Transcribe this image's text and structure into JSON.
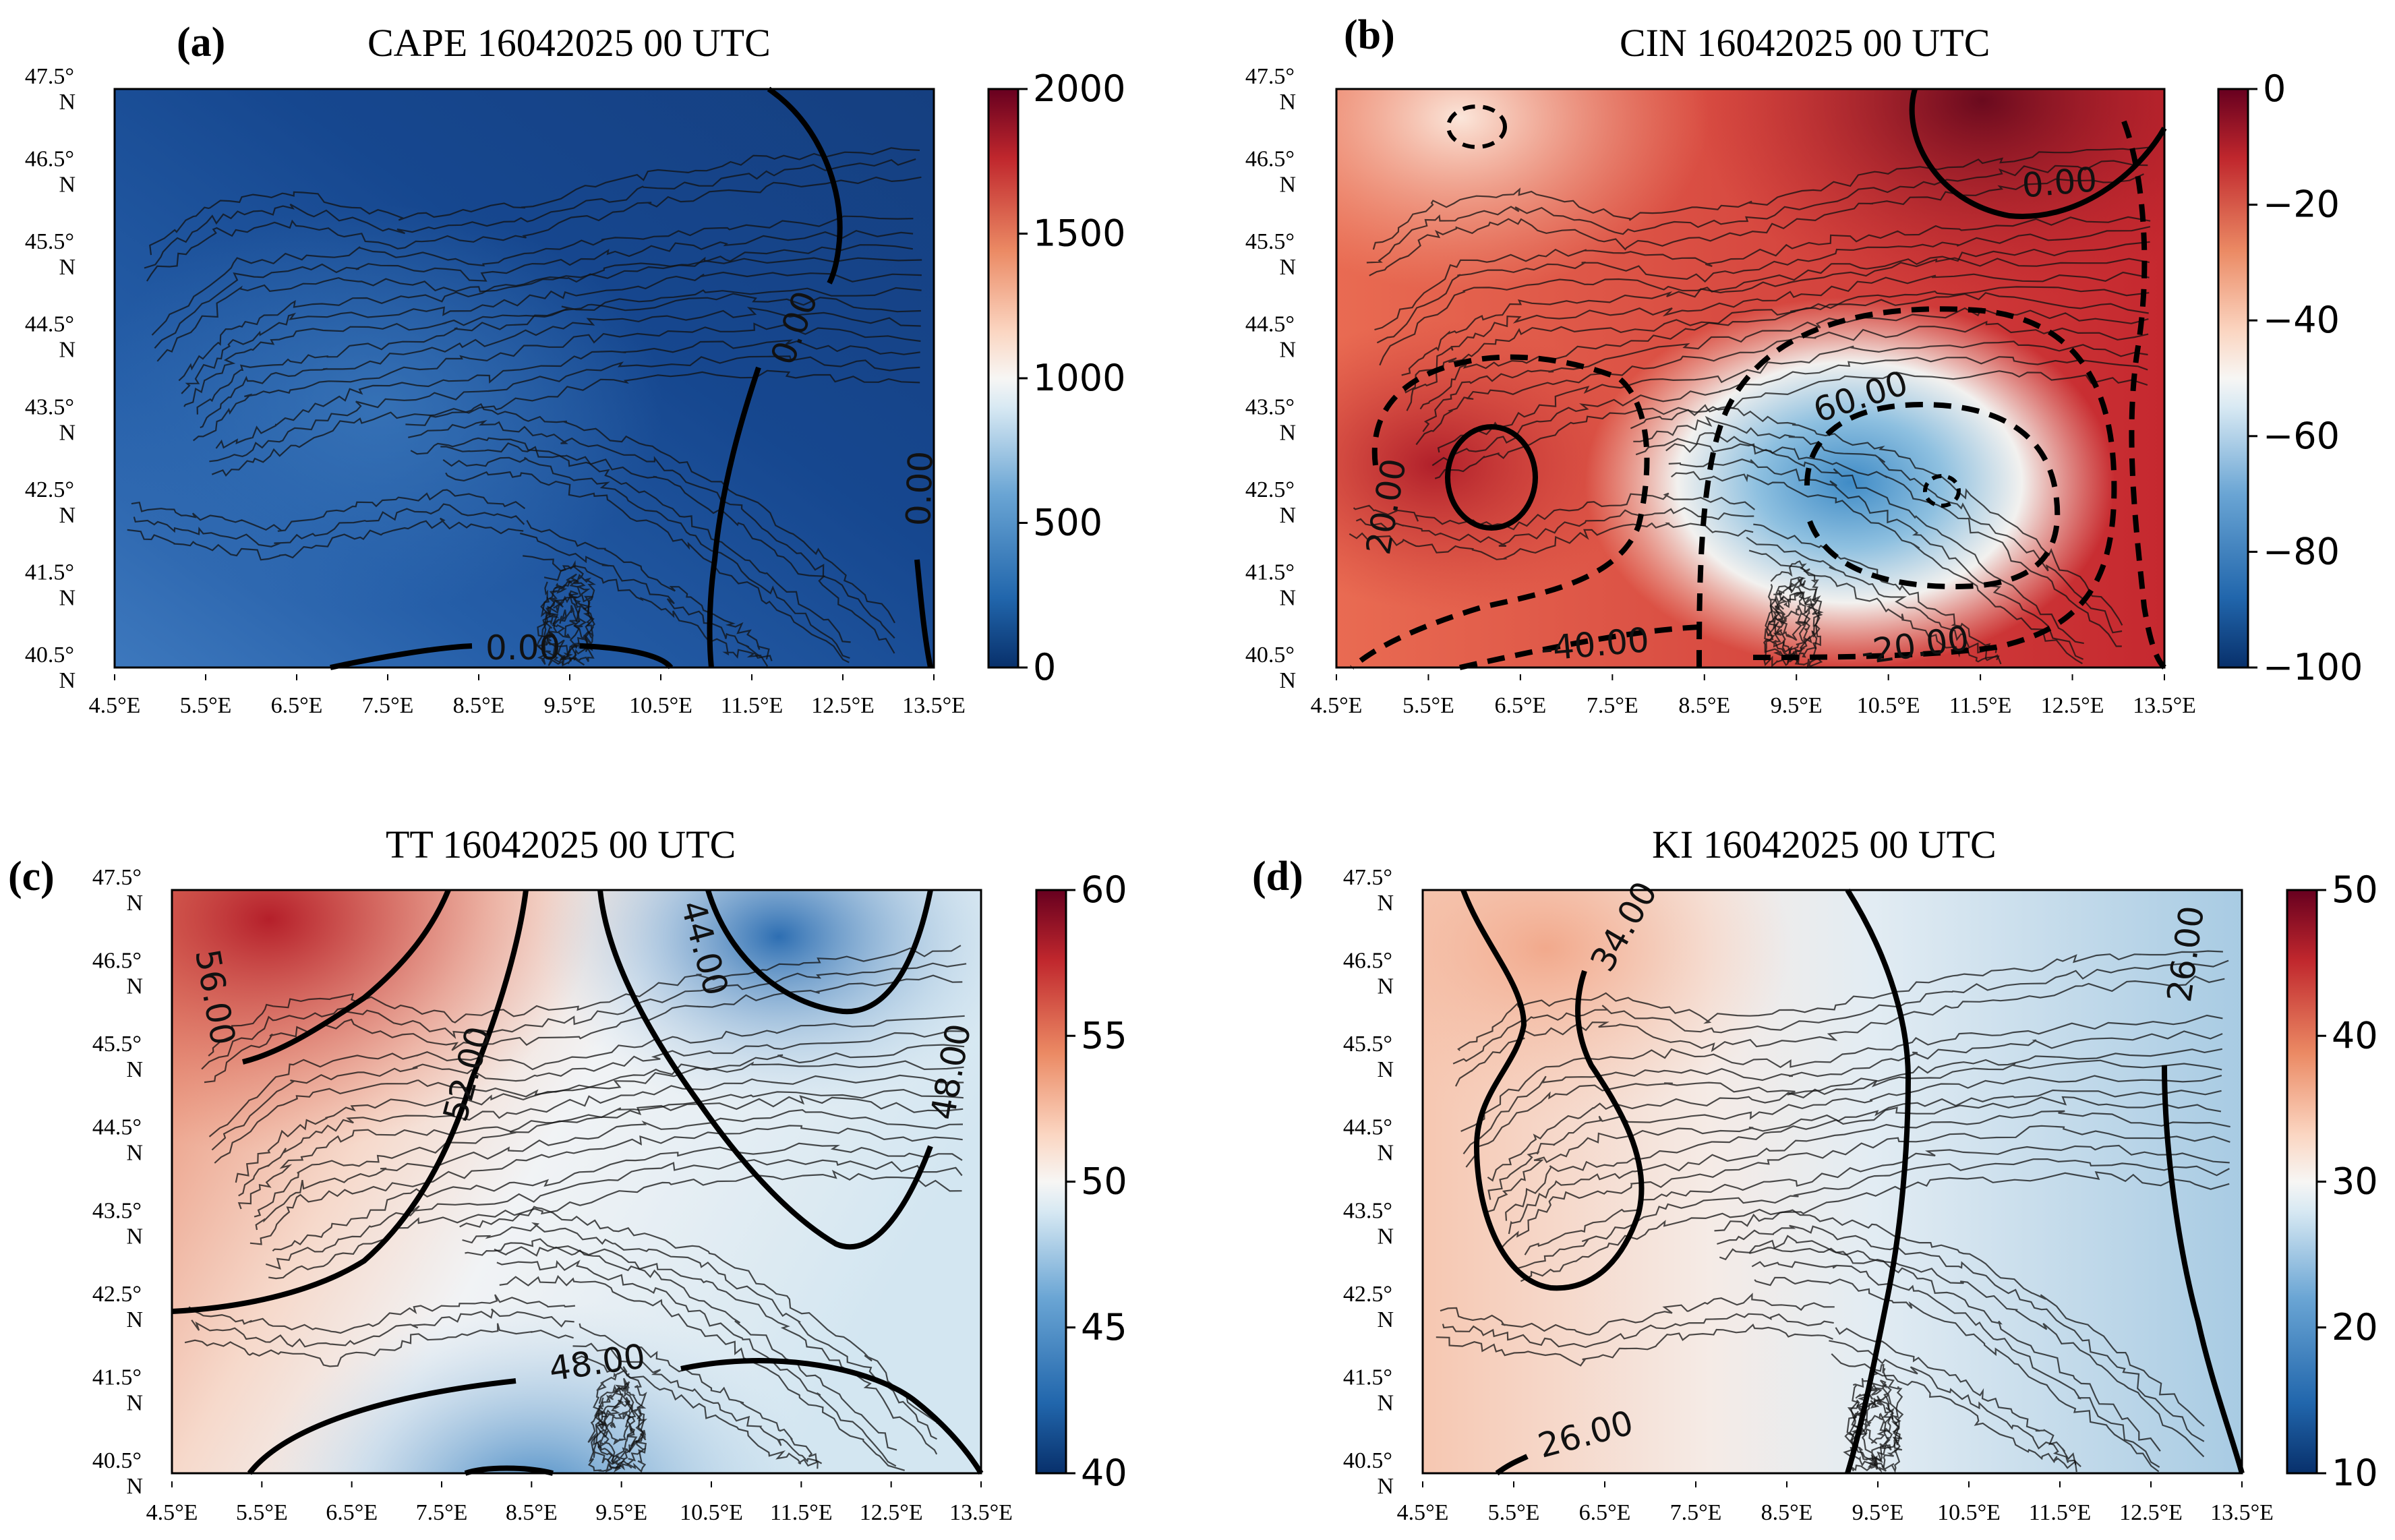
{
  "figure": {
    "description_labels": true
  },
  "chart_data": [
    {
      "type": "heatmap",
      "panel": "(a)",
      "title": "CAPE 16042025 00 UTC",
      "variable": "CAPE",
      "colorbar": {
        "min": 0,
        "max": 2000,
        "ticks": [
          "2000",
          "1500",
          "1000",
          "500",
          "0"
        ]
      },
      "x_ticks": [
        "4.5°E",
        "5.5°E",
        "6.5°E",
        "7.5°E",
        "8.5°E",
        "9.5°E",
        "10.5°E",
        "11.5°E",
        "12.5°E",
        "13.5°E"
      ],
      "y_ticks": [
        "47.5°",
        "46.5°",
        "45.5°",
        "44.5°",
        "43.5°",
        "42.5°",
        "41.5°",
        "40.5°"
      ],
      "y_suffix": "N",
      "contour_labels": [
        "0.00",
        "0.00",
        "0.00"
      ]
    },
    {
      "type": "heatmap",
      "panel": "(b)",
      "title": "CIN 16042025 00 UTC",
      "variable": "CIN",
      "colorbar": {
        "min": -100,
        "max": 0,
        "ticks": [
          "0",
          "−20",
          "−40",
          "−60",
          "−80",
          "−100"
        ]
      },
      "x_ticks": [
        "4.5°E",
        "5.5°E",
        "6.5°E",
        "7.5°E",
        "8.5°E",
        "9.5°E",
        "10.5°E",
        "11.5°E",
        "12.5°E",
        "13.5°E"
      ],
      "y_ticks": [
        "47.5°",
        "46.5°",
        "45.5°",
        "44.5°",
        "43.5°",
        "42.5°",
        "41.5°",
        "40.5°"
      ],
      "y_suffix": "N",
      "contour_labels": [
        "0.00",
        "20.00",
        "-40.00",
        "60.00",
        "-20.00"
      ]
    },
    {
      "type": "heatmap",
      "panel": "(c)",
      "title": "TT 16042025 00 UTC",
      "variable": "TT",
      "colorbar": {
        "min": 40,
        "max": 60,
        "ticks": [
          "60",
          "55",
          "50",
          "45",
          "40"
        ]
      },
      "x_ticks": [
        "4.5°E",
        "5.5°E",
        "6.5°E",
        "7.5°E",
        "8.5°E",
        "9.5°E",
        "10.5°E",
        "11.5°E",
        "12.5°E",
        "13.5°E"
      ],
      "y_ticks": [
        "47.5°",
        "46.5°",
        "45.5°",
        "44.5°",
        "43.5°",
        "42.5°",
        "41.5°",
        "40.5°"
      ],
      "y_suffix": "N",
      "contour_labels": [
        "56.00",
        "44.00",
        "52.00",
        "48.00",
        "48.00"
      ]
    },
    {
      "type": "heatmap",
      "panel": "(d)",
      "title": "KI 16042025 00 UTC",
      "variable": "KI",
      "colorbar": {
        "min": 10,
        "max": 50,
        "ticks": [
          "50",
          "40",
          "30",
          "20",
          "10"
        ]
      },
      "x_ticks": [
        "4.5°E",
        "5.5°E",
        "6.5°E",
        "7.5°E",
        "8.5°E",
        "9.5°E",
        "10.5°E",
        "11.5°E",
        "12.5°E",
        "13.5°E"
      ],
      "y_ticks": [
        "47.5°",
        "46.5°",
        "45.5°",
        "44.5°",
        "43.5°",
        "42.5°",
        "41.5°",
        "40.5°"
      ],
      "y_suffix": "N",
      "contour_labels": [
        "34.00",
        "26.00",
        "26.00"
      ]
    }
  ]
}
